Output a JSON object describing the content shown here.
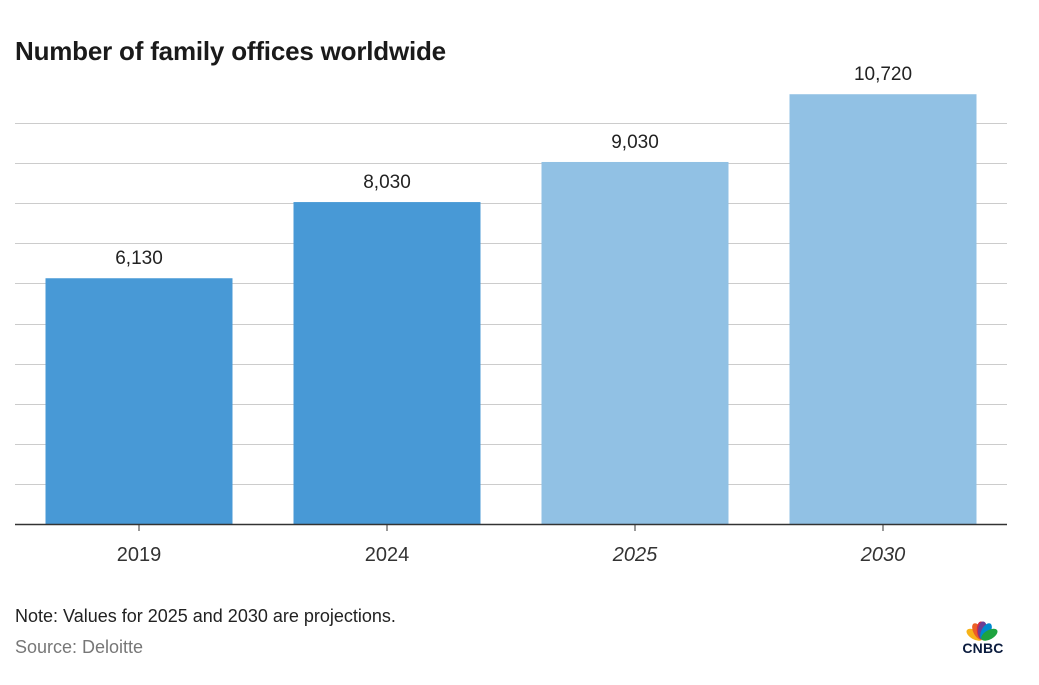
{
  "chart_data": {
    "type": "bar",
    "title": "Number of family offices worldwide",
    "categories": [
      "2019",
      "2024",
      "2025",
      "2030"
    ],
    "values": [
      6130,
      8030,
      9030,
      10720
    ],
    "value_labels": [
      "6,130",
      "8,030",
      "9,030",
      "10,720"
    ],
    "projected": [
      false,
      false,
      true,
      true
    ],
    "xlabel": "",
    "ylabel": "",
    "ylim": [
      0,
      11000
    ],
    "grid": true,
    "y_tick_labels_shown": false,
    "colors": {
      "actual": "#4899d6",
      "projected": "#91c1e4",
      "grid": "#cccccc",
      "axis": "#333333"
    }
  },
  "footer": {
    "note": "Note: Values for 2025 and 2030 are projections.",
    "source": "Source: Deloitte"
  },
  "brand": {
    "logo_text": "CNBC",
    "logo_icon": "peacock-icon",
    "peacock_colors": [
      "#f7b318",
      "#ec5f25",
      "#cf2a48",
      "#6c3e93",
      "#0089cf",
      "#1ea33f"
    ]
  }
}
